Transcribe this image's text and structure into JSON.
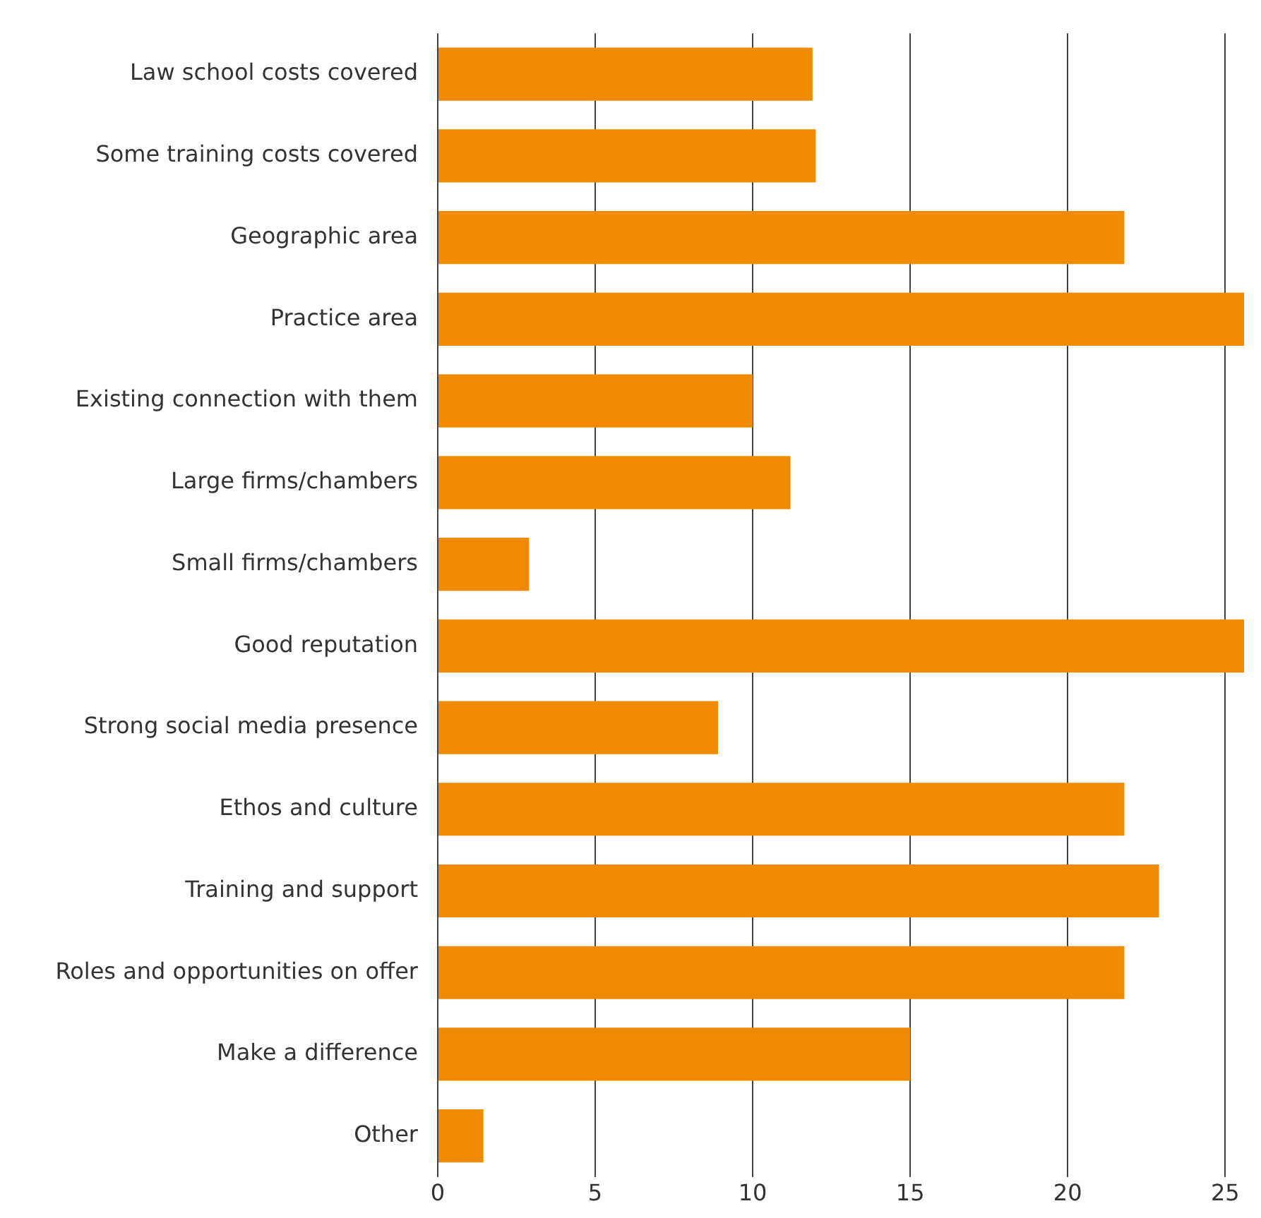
{
  "chart_data": {
    "type": "bar",
    "orientation": "horizontal",
    "categories": [
      "Law school costs covered",
      "Some training costs covered",
      "Geographic area",
      "Practice area",
      "Existing connection with them",
      "Large firms/chambers",
      "Small firms/chambers",
      "Good reputation",
      "Strong social media presence",
      "Ethos and culture",
      "Training and support",
      "Roles and opportunities on offer",
      "Make a difference",
      "Other"
    ],
    "values": [
      11.9,
      12,
      21.8,
      25.6,
      10,
      11.2,
      2.9,
      25.6,
      8.9,
      21.8,
      22.9,
      21.8,
      15,
      1.45
    ],
    "color": "#f08a00",
    "xlim": [
      0,
      25.6
    ],
    "xticks": [
      0,
      5,
      10,
      15,
      20,
      25
    ],
    "grid": "x",
    "legend": false
  }
}
